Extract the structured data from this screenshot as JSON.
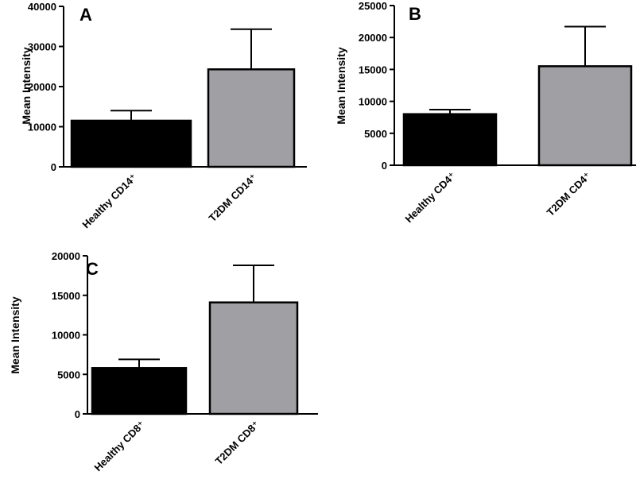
{
  "chart_data": [
    {
      "panel": "A",
      "type": "bar",
      "ylabel": "Mean Intensity",
      "ylim": [
        0,
        40000
      ],
      "yticks": [
        "0",
        "10000",
        "20000",
        "30000",
        "40000"
      ],
      "categories": [
        "Healthy CD14⁺",
        "T2DM CD14⁺"
      ],
      "values": [
        11500,
        24300
      ],
      "error": [
        2500,
        10000
      ],
      "colors": [
        "#000000",
        "#a0a0a4"
      ],
      "grid": false
    },
    {
      "panel": "B",
      "type": "bar",
      "ylabel": "Mean Intensity",
      "ylim": [
        0,
        25000
      ],
      "yticks": [
        "0",
        "5000",
        "10000",
        "15000",
        "20000",
        "25000"
      ],
      "categories": [
        "Healthy CD4⁺",
        "T2DM CD4⁺"
      ],
      "values": [
        8000,
        15500
      ],
      "error": [
        700,
        6200
      ],
      "colors": [
        "#000000",
        "#a0a0a4"
      ],
      "grid": false
    },
    {
      "panel": "C",
      "type": "bar",
      "ylabel": "Mean Intensity",
      "ylim": [
        0,
        20000
      ],
      "yticks": [
        "0",
        "5000",
        "10000",
        "15000",
        "20000"
      ],
      "categories": [
        "Healthy CD8⁺",
        "T2DM CD8⁺"
      ],
      "values": [
        5800,
        14100
      ],
      "error": [
        1100,
        4700
      ],
      "colors": [
        "#000000",
        "#a0a0a4"
      ],
      "grid": false
    }
  ]
}
